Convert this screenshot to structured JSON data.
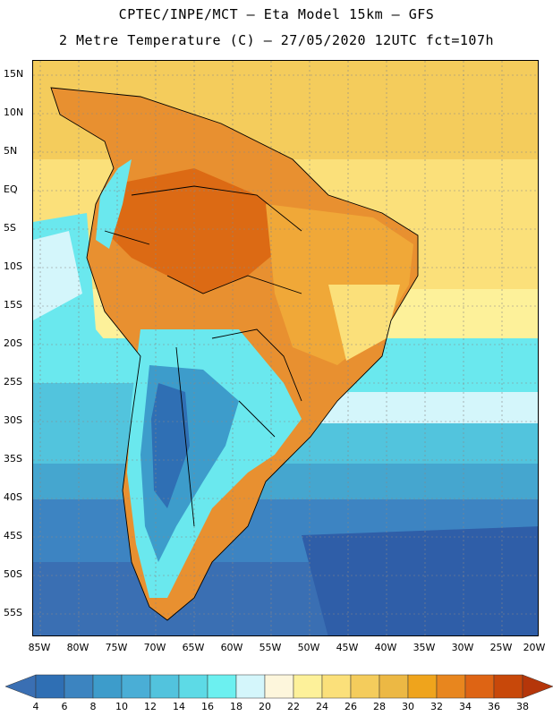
{
  "header": {
    "line1": "CPTEC/INPE/MCT –  Eta Model 15km – GFS",
    "line2": "2 Metre Temperature (C) – 27/05/2020 12UTC fct=107h"
  },
  "axes": {
    "lat_labels": [
      "15N",
      "10N",
      "5N",
      "EQ",
      "5S",
      "10S",
      "15S",
      "20S",
      "25S",
      "30S",
      "35S",
      "40S",
      "45S",
      "50S",
      "55S"
    ],
    "lon_labels": [
      "85W",
      "80W",
      "75W",
      "70W",
      "65W",
      "60W",
      "55W",
      "50W",
      "45W",
      "40W",
      "35W",
      "30W",
      "25W",
      "20W"
    ]
  },
  "legend": {
    "levels": [
      "4",
      "6",
      "8",
      "10",
      "12",
      "14",
      "16",
      "18",
      "20",
      "22",
      "24",
      "26",
      "28",
      "30",
      "32",
      "34",
      "36",
      "38"
    ],
    "colors": [
      "#3a6fb3",
      "#2f6fb4",
      "#3c84c0",
      "#3d9ccb",
      "#4aaed6",
      "#52c3dd",
      "#5ddae6",
      "#6cf0f0",
      "#d4f6fb",
      "#fdf6dc",
      "#fdf19a",
      "#fbe07a",
      "#f4cc5c",
      "#ecb844",
      "#efa41c",
      "#e8861e",
      "#de6414",
      "#c8480a",
      "#b5360a"
    ]
  }
}
